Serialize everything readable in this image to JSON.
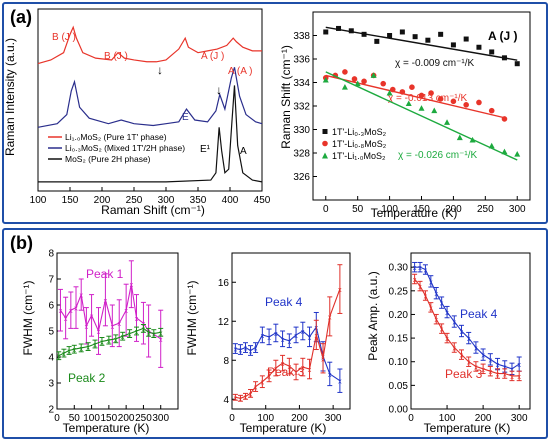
{
  "panel_a": {
    "label": "(a)",
    "charts": {
      "spectra": {
        "type": "line",
        "xlabel": "Raman Shift (cm⁻¹)",
        "ylabel": "Raman Intensity (a.u.)",
        "xlim": [
          100,
          450
        ],
        "xticks": [
          100,
          150,
          200,
          250,
          300,
          350,
          400,
          450
        ],
        "annotations": {
          "bg_j1": "B (J )",
          "bg_j2": "B (J )",
          "ag_j3": "A (J )",
          "ag_a1g": "A (A )",
          "eg": "E",
          "e2g": "E¹",
          "a1g": "A"
        },
        "legend": [
          {
            "label": "Li₁.₀MoS₂ (Pure 1T' phase)",
            "color": "#e8342a"
          },
          {
            "label": "Li₀.₃MoS₂ (Mixed 1T'/2H phase)",
            "color": "#2a2e8c"
          },
          {
            "label": "MoS₂ (Pure 2H phase)",
            "color": "#111111"
          }
        ],
        "series": [
          {
            "name": "Li₁.₀MoS₂",
            "color": "#e8342a",
            "x": [
              100,
              120,
              140,
              150,
              155,
              160,
              170,
              190,
              215,
              225,
              235,
              250,
              270,
              285,
              300,
              320,
              330,
              335,
              350,
              365,
              380,
              395,
              405,
              410,
              420,
              435,
              450
            ],
            "y": [
              0.7,
              0.72,
              0.76,
              0.86,
              0.9,
              0.84,
              0.76,
              0.73,
              0.72,
              0.76,
              0.73,
              0.72,
              0.71,
              0.71,
              0.72,
              0.78,
              0.84,
              0.79,
              0.76,
              0.77,
              0.78,
              0.8,
              0.84,
              0.82,
              0.79,
              0.77,
              0.77
            ]
          },
          {
            "name": "Li₀.₃MoS₂",
            "color": "#2a2e8c",
            "x": [
              100,
              130,
              145,
              152,
              157,
              165,
              180,
              210,
              230,
              250,
              280,
              300,
              320,
              332,
              345,
              365,
              378,
              384,
              392,
              402,
              407,
              415,
              425,
              440,
              450
            ],
            "y": [
              0.35,
              0.37,
              0.42,
              0.55,
              0.6,
              0.46,
              0.4,
              0.37,
              0.39,
              0.37,
              0.36,
              0.37,
              0.38,
              0.45,
              0.39,
              0.38,
              0.44,
              0.53,
              0.45,
              0.62,
              0.68,
              0.52,
              0.42,
              0.38,
              0.37
            ]
          },
          {
            "name": "MoS₂",
            "color": "#111111",
            "x": [
              100,
              200,
              300,
              370,
              378,
              383,
              387,
              392,
              398,
              403,
              407,
              412,
              420,
              435,
              450
            ],
            "y": [
              0.05,
              0.05,
              0.05,
              0.06,
              0.1,
              0.35,
              0.22,
              0.1,
              0.12,
              0.38,
              0.58,
              0.25,
              0.1,
              0.06,
              0.05
            ]
          }
        ]
      },
      "ag_shift": {
        "type": "scatter",
        "title": "A (J )",
        "xlabel": "Temperature (K)",
        "ylabel": "Raman Shift (cm⁻¹)",
        "xlim": [
          -20,
          320
        ],
        "ylim": [
          324,
          340
        ],
        "xticks": [
          0,
          50,
          100,
          150,
          200,
          250,
          300
        ],
        "yticks": [
          326,
          328,
          330,
          332,
          334,
          336,
          338
        ],
        "series": [
          {
            "name": "1T'-Li₀.₃MoS₂",
            "color": "#111111",
            "marker": "square",
            "x": [
              0,
              20,
              40,
              60,
              80,
              100,
              120,
              140,
              160,
              180,
              200,
              220,
              240,
              260,
              280,
              300
            ],
            "y": [
              338.3,
              338.6,
              338.4,
              338.1,
              337.5,
              338.0,
              338.3,
              337.9,
              337.6,
              338.1,
              337.2,
              337.7,
              337.0,
              336.6,
              336.1,
              335.6
            ],
            "fit": {
              "x": [
                0,
                300
              ],
              "y": [
                338.7,
                335.9
              ]
            },
            "annotation": "χ = -0.009 cm⁻¹/K"
          },
          {
            "name": "1T'-Li₀.₈MoS₂",
            "color": "#e8342a",
            "marker": "circle",
            "x": [
              0,
              15,
              30,
              45,
              60,
              75,
              90,
              105,
              120,
              135,
              150,
              165,
              180,
              200,
              220,
              240,
              260,
              280
            ],
            "y": [
              334.4,
              334.6,
              334.9,
              334.3,
              334.1,
              334.6,
              333.9,
              333.4,
              333.2,
              333.6,
              332.9,
              333.1,
              332.6,
              332.4,
              332.1,
              332.3,
              331.6,
              330.9
            ],
            "fit": {
              "x": [
                0,
                280
              ],
              "y": [
                334.6,
                331.0
              ]
            },
            "annotation": "χ = -0.013 cm⁻¹/K"
          },
          {
            "name": "1T'-Li₁.₀MoS₂",
            "color": "#1daa3f",
            "marker": "triangle",
            "x": [
              0,
              30,
              50,
              75,
              100,
              130,
              150,
              170,
              190,
              210,
              230,
              260,
              280,
              300
            ],
            "y": [
              334.2,
              333.6,
              333.9,
              334.6,
              333.1,
              332.2,
              331.8,
              331.6,
              330.6,
              329.3,
              329.1,
              328.6,
              328.1,
              327.9
            ],
            "fit": {
              "x": [
                0,
                300
              ],
              "y": [
                334.9,
                327.4
              ]
            },
            "annotation": "χ = -0.026 cm⁻¹/K"
          }
        ]
      }
    }
  },
  "panel_b": {
    "label": "(b)",
    "charts": {
      "fwhm_peaks12": {
        "type": "line",
        "xlabel": "Temperature (K)",
        "ylabel": "FWHM (cm⁻¹)",
        "xlim": [
          0,
          350
        ],
        "ylim": [
          2,
          8
        ],
        "xticks": [
          0,
          50,
          100,
          150,
          200,
          250,
          300
        ],
        "yticks": [
          2,
          3,
          4,
          5,
          6,
          7,
          8
        ],
        "series": [
          {
            "name": "Peak 1",
            "color": "#d020c8",
            "x": [
              10,
              25,
              40,
              55,
              70,
              85,
              100,
              120,
              140,
              160,
              180,
              200,
              215,
              230,
              250,
              265,
              300
            ],
            "y": [
              5.8,
              5.5,
              5.8,
              5.9,
              6.4,
              5.2,
              5.6,
              5.0,
              6.2,
              5.2,
              5.3,
              5.8,
              6.8,
              5.5,
              5.3,
              5.0,
              4.7
            ],
            "err": [
              0.8,
              0.8,
              0.7,
              0.8,
              0.6,
              0.7,
              0.8,
              0.9,
              1.0,
              0.8,
              0.9,
              1.0,
              0.9,
              0.9,
              0.8,
              1.0,
              1.1
            ]
          },
          {
            "name": "Peak 2",
            "color": "#1b8a1b",
            "x": [
              5,
              20,
              35,
              50,
              70,
              90,
              110,
              130,
              150,
              170,
              190,
              210,
              230,
              250,
              265,
              280,
              300
            ],
            "y": [
              4.05,
              4.15,
              4.25,
              4.3,
              4.35,
              4.4,
              4.5,
              4.6,
              4.65,
              4.7,
              4.8,
              4.9,
              5.0,
              5.1,
              4.95,
              4.9,
              4.95
            ],
            "err": [
              0.15,
              0.15,
              0.15,
              0.15,
              0.15,
              0.15,
              0.15,
              0.15,
              0.15,
              0.15,
              0.15,
              0.15,
              0.15,
              0.15,
              0.15,
              0.15,
              0.15
            ]
          }
        ]
      },
      "fwhm_peaks34": {
        "type": "line",
        "xlabel": "Temperature (K)",
        "ylabel": "FWHM (cm⁻¹)",
        "xlim": [
          0,
          350
        ],
        "ylim": [
          3,
          19
        ],
        "xticks": [
          0,
          100,
          200,
          300
        ],
        "yticks": [
          4,
          8,
          12,
          16
        ],
        "series": [
          {
            "name": "Peak 4",
            "color": "#2034c8",
            "x": [
              10,
              25,
              40,
              55,
              70,
              90,
              110,
              130,
              150,
              170,
              190,
              210,
              230,
              250,
              270,
              290,
              320
            ],
            "y": [
              9.2,
              9.1,
              9.3,
              9.0,
              9.3,
              10.6,
              10.4,
              10.8,
              10.2,
              10.0,
              10.6,
              11.0,
              10.4,
              11.4,
              8.4,
              6.6,
              5.9
            ],
            "err": [
              0.5,
              0.5,
              0.5,
              0.5,
              0.5,
              0.8,
              0.8,
              0.9,
              0.8,
              0.7,
              0.8,
              0.9,
              1.0,
              1.5,
              1.5,
              1.2,
              1.2
            ]
          },
          {
            "name": "Peak 3",
            "color": "#e0302a",
            "x": [
              10,
              25,
              40,
              55,
              70,
              90,
              110,
              130,
              150,
              170,
              190,
              210,
              230,
              250,
              270,
              290,
              320
            ],
            "y": [
              4.2,
              4.1,
              4.3,
              4.6,
              5.3,
              5.8,
              6.4,
              7.2,
              7.7,
              7.4,
              6.8,
              7.3,
              7.1,
              10.6,
              8.2,
              12.5,
              15.3
            ],
            "err": [
              0.3,
              0.3,
              0.3,
              0.4,
              0.5,
              0.6,
              0.6,
              0.8,
              0.8,
              0.8,
              0.8,
              0.9,
              1.0,
              1.5,
              1.5,
              2.0,
              2.5
            ]
          }
        ]
      },
      "peak_amp": {
        "type": "line",
        "xlabel": "Temperature (K)",
        "ylabel": "Peak Amp. (a.u.)",
        "xlim": [
          0,
          330
        ],
        "ylim": [
          0,
          0.33
        ],
        "xticks": [
          0,
          100,
          200,
          300
        ],
        "yticks": [
          0.0,
          0.05,
          0.1,
          0.15,
          0.2,
          0.25,
          0.3
        ],
        "series": [
          {
            "name": "Peak 4",
            "color": "#2034c8",
            "x": [
              10,
              25,
              40,
              55,
              70,
              85,
              100,
              120,
              140,
              160,
              180,
              200,
              220,
              240,
              260,
              280,
              300
            ],
            "y": [
              0.3,
              0.3,
              0.295,
              0.27,
              0.245,
              0.225,
              0.205,
              0.185,
              0.165,
              0.15,
              0.13,
              0.115,
              0.105,
              0.095,
              0.09,
              0.085,
              0.095
            ],
            "err": [
              0.01,
              0.01,
              0.01,
              0.012,
              0.012,
              0.012,
              0.012,
              0.012,
              0.012,
              0.012,
              0.012,
              0.012,
              0.012,
              0.012,
              0.012,
              0.012,
              0.015
            ]
          },
          {
            "name": "Peak 3",
            "color": "#e0302a",
            "x": [
              10,
              25,
              40,
              55,
              70,
              85,
              100,
              120,
              140,
              160,
              180,
              200,
              220,
              240,
              260,
              280,
              300
            ],
            "y": [
              0.275,
              0.26,
              0.24,
              0.215,
              0.19,
              0.17,
              0.15,
              0.13,
              0.115,
              0.1,
              0.09,
              0.085,
              0.08,
              0.075,
              0.075,
              0.07,
              0.07
            ],
            "err": [
              0.01,
              0.01,
              0.01,
              0.01,
              0.01,
              0.01,
              0.01,
              0.01,
              0.01,
              0.01,
              0.01,
              0.01,
              0.01,
              0.01,
              0.01,
              0.01,
              0.01
            ]
          }
        ]
      }
    }
  }
}
